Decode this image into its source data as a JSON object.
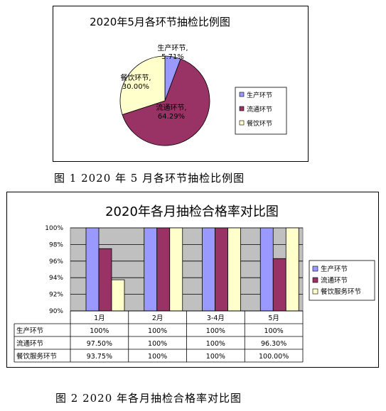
{
  "figure1": {
    "caption": "图 1  2020 年 5 月各环节抽检比例图",
    "chart_data": {
      "type": "pie",
      "title": "2020年5月各环节抽检比例图",
      "labels": [
        "生产环节",
        "流通环节",
        "餐饮环节"
      ],
      "values": [
        5.71,
        64.29,
        30.0
      ],
      "data_labels": [
        "生产环节,\n5.71%",
        "流通环节,\n64.29%",
        "餐饮环节,\n30.00%"
      ],
      "colors": [
        "#9999FF",
        "#993366",
        "#FFFFCC"
      ],
      "legend": [
        "生产环节",
        "流通环节",
        "餐饮环节"
      ],
      "legend_position": "right"
    }
  },
  "figure2": {
    "caption": "图 2  2020 年各月抽检合格率对比图",
    "chart_data": {
      "type": "bar",
      "title": "2020年各月抽检合格率对比图",
      "categories": [
        "1月",
        "2月",
        "3-4月",
        "5月"
      ],
      "series": [
        {
          "name": "生产环节",
          "values": [
            100,
            100,
            100,
            100
          ],
          "color": "#9999FF"
        },
        {
          "name": "流通环节",
          "values": [
            97.5,
            100,
            100,
            96.3
          ],
          "color": "#993366"
        },
        {
          "name": "餐饮服务环节",
          "values": [
            93.75,
            100,
            100,
            100
          ],
          "color": "#FFFFCC"
        }
      ],
      "yticks": [
        "90%",
        "92%",
        "94%",
        "96%",
        "98%",
        "100%"
      ],
      "ylim": [
        90,
        100
      ],
      "grid": true,
      "plot_background": "#C0C0C0",
      "legend_position": "right",
      "table": {
        "rows": [
          {
            "name": "生产环节",
            "cells": [
              "100%",
              "100%",
              "100%",
              "100%"
            ]
          },
          {
            "name": "流通环节",
            "cells": [
              "97.50%",
              "100%",
              "100%",
              "96.30%"
            ]
          },
          {
            "name": "餐饮服务环节",
            "cells": [
              "93.75%",
              "100%",
              "100%",
              "100.00%"
            ]
          }
        ]
      }
    }
  }
}
